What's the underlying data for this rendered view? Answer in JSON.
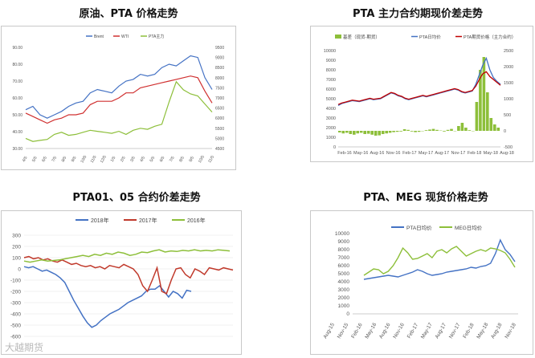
{
  "watermark": "大越期货",
  "chart_data": [
    {
      "type": "line",
      "title": "原油、PTA 价格走势",
      "legend": [
        "Brent",
        "WTI",
        "PTA主力"
      ],
      "colors": [
        "#4472c4",
        "#d03030",
        "#8dbf3a"
      ],
      "x_ticks": [
        "4/5",
        "5/5",
        "6/5",
        "7/5",
        "8/5",
        "9/5",
        "10/5",
        "11/5",
        "12/5",
        "1/5",
        "2/5",
        "3/5",
        "4/5",
        "5/5",
        "6/5",
        "7/5",
        "8/5",
        "9/5",
        "10/5",
        "11/5"
      ],
      "y_left_ticks": [
        "30.00",
        "40.00",
        "50.00",
        "60.00",
        "70.00",
        "80.00",
        "90.00"
      ],
      "y_right_ticks": [
        "4500",
        "5000",
        "5500",
        "6000",
        "6500",
        "7000",
        "7500",
        "8000",
        "8500",
        "9000",
        "9500"
      ],
      "ylim_left": [
        30,
        90
      ],
      "ylim_right": [
        4500,
        9500
      ],
      "series": [
        {
          "name": "Brent",
          "axis": "left",
          "values": [
            53,
            55,
            50,
            48,
            50,
            52,
            55,
            57,
            58,
            63,
            65,
            64,
            63,
            67,
            70,
            71,
            74,
            73,
            74,
            78,
            80,
            79,
            82,
            85,
            84,
            72,
            65
          ]
        },
        {
          "name": "WTI",
          "axis": "left",
          "values": [
            51,
            49,
            47,
            45,
            47,
            48,
            50,
            50,
            51,
            56,
            58,
            58,
            58,
            60,
            63,
            63,
            66,
            67,
            68,
            69,
            70,
            71,
            72,
            73,
            72,
            64,
            57
          ]
        },
        {
          "name": "PTA主力",
          "axis": "right",
          "values": [
            5000,
            4850,
            4900,
            4950,
            5200,
            5300,
            5150,
            5200,
            5300,
            5400,
            5350,
            5300,
            5250,
            5350,
            5200,
            5400,
            5500,
            5450,
            5600,
            5700,
            6800,
            7800,
            7400,
            7200,
            7100,
            6700,
            6300
          ]
        }
      ]
    },
    {
      "type": "line",
      "title": "PTA 主力合约期现价差走势",
      "legend": [
        "基差（现货-期货）",
        "PTA日均价",
        "PTA期货价格（主力合约）"
      ],
      "colors": [
        "#8dbf3a",
        "#4472c4",
        "#c00000"
      ],
      "x_ticks": [
        "Feb-16",
        "May-16",
        "Aug-16",
        "Nov-16",
        "Feb-17",
        "May-17",
        "Aug-17",
        "Nov-17",
        "Feb-18",
        "May-18",
        "Aug-18"
      ],
      "y_left_ticks": [
        "0",
        "1000",
        "2000",
        "3000",
        "4000",
        "5000",
        "6000",
        "7000",
        "8000",
        "9000",
        "10000"
      ],
      "y_right_ticks": [
        "-500",
        "0",
        "500",
        "1000",
        "1500",
        "2000",
        "2500"
      ],
      "ylim_left": [
        0,
        10000
      ],
      "ylim_right": [
        -500,
        2500
      ],
      "series": [
        {
          "name": "基差（现货-期货）",
          "axis": "right",
          "kind": "bar",
          "values": [
            -50,
            -80,
            -60,
            -100,
            -120,
            -80,
            -60,
            -100,
            -90,
            -120,
            -150,
            -140,
            -100,
            -80,
            -60,
            -40,
            -30,
            -20,
            50,
            30,
            -20,
            -40,
            -30,
            -10,
            20,
            40,
            60,
            30,
            10,
            -20,
            30,
            60,
            -10,
            150,
            250,
            100,
            20,
            -10,
            900,
            1900,
            2300,
            1200,
            400,
            200,
            100
          ]
        },
        {
          "name": "PTA日均价",
          "axis": "left",
          "values": [
            4300,
            4500,
            4600,
            4700,
            4800,
            4750,
            4700,
            4800,
            4900,
            5000,
            4900,
            4950,
            5000,
            5200,
            5400,
            5600,
            5500,
            5300,
            5200,
            5000,
            4900,
            5000,
            5100,
            5200,
            5300,
            5200,
            5300,
            5400,
            5500,
            5600,
            5700,
            5800,
            5900,
            6000,
            5900,
            5700,
            5600,
            5700,
            5800,
            6500,
            7500,
            8500,
            9200,
            8000,
            7200,
            6800,
            6500
          ]
        },
        {
          "name": "PTA期货价格（主力合约）",
          "axis": "left",
          "values": [
            4400,
            4550,
            4650,
            4750,
            4850,
            4800,
            4750,
            4850,
            4950,
            5050,
            4950,
            5000,
            5050,
            5250,
            5450,
            5650,
            5550,
            5350,
            5250,
            5050,
            4950,
            5050,
            5150,
            5250,
            5350,
            5250,
            5350,
            5450,
            5550,
            5650,
            5750,
            5850,
            5950,
            6050,
            5950,
            5750,
            5650,
            5750,
            5850,
            6300,
            7000,
            7600,
            7800,
            7300,
            7000,
            6700,
            6400
          ]
        }
      ]
    },
    {
      "type": "line",
      "title": "PTA01、05 合约价差走势",
      "legend": [
        "2018年",
        "2017年",
        "2016年"
      ],
      "colors": [
        "#4472c4",
        "#c0392b",
        "#8dbf3a"
      ],
      "y_ticks": [
        "-600",
        "-500",
        "-400",
        "-300",
        "-200",
        "-100",
        "0",
        "100",
        "200",
        "300"
      ],
      "ylim": [
        -600,
        300
      ],
      "series": [
        {
          "name": "2018年",
          "values": [
            20,
            10,
            20,
            0,
            -20,
            -10,
            -30,
            -50,
            -80,
            -120,
            -200,
            -280,
            -350,
            -420,
            -480,
            -520,
            -500,
            -460,
            -430,
            -400,
            -380,
            -360,
            -330,
            -300,
            -280,
            -260,
            -240,
            -200,
            -180,
            -180,
            -150,
            -200,
            -250,
            -200,
            -220,
            -260,
            -190,
            -200
          ]
        },
        {
          "name": "2017年",
          "values": [
            100,
            110,
            90,
            100,
            80,
            90,
            70,
            60,
            80,
            60,
            40,
            50,
            30,
            20,
            30,
            10,
            20,
            0,
            30,
            20,
            10,
            40,
            20,
            0,
            -50,
            -150,
            -200,
            -100,
            10,
            -200,
            -220,
            -100,
            0,
            10,
            -50,
            -80,
            0,
            -20,
            -50,
            10,
            0,
            -10,
            10,
            0,
            -10
          ]
        },
        {
          "name": "2016年",
          "values": [
            70,
            60,
            70,
            80,
            70,
            75,
            80,
            90,
            100,
            110,
            120,
            110,
            130,
            120,
            140,
            130,
            150,
            140,
            120,
            130,
            150,
            145,
            160,
            170,
            150,
            160,
            155,
            165,
            160,
            170,
            160,
            165,
            160,
            170,
            165,
            160
          ]
        }
      ]
    },
    {
      "type": "line",
      "title": "PTA、MEG 现货价格走势",
      "legend": [
        "PTA日均价",
        "MEG日均价"
      ],
      "colors": [
        "#4472c4",
        "#8dbf3a"
      ],
      "x_ticks": [
        "Aug-15",
        "Nov-15",
        "Feb-16",
        "May-16",
        "Aug-16",
        "Nov-16",
        "Feb-17",
        "May-17",
        "Aug-17",
        "Nov-17",
        "Feb-18",
        "May-18",
        "Aug-18",
        "Nov-18"
      ],
      "y_ticks": [
        "0",
        "1000",
        "2000",
        "3000",
        "4000",
        "5000",
        "6000",
        "7000",
        "8000",
        "9000",
        "10000"
      ],
      "ylim": [
        0,
        10000
      ],
      "series": [
        {
          "name": "PTA日均价",
          "values": [
            4300,
            4400,
            4500,
            4600,
            4700,
            4800,
            4700,
            4600,
            4800,
            5000,
            5200,
            5500,
            5300,
            5000,
            4800,
            4900,
            5000,
            5200,
            5300,
            5400,
            5500,
            5600,
            5800,
            5700,
            5900,
            6000,
            6300,
            7500,
            9200,
            8000,
            7400,
            6500
          ]
        },
        {
          "name": "MEG日均价",
          "values": [
            4800,
            5200,
            5600,
            5500,
            5000,
            5300,
            6000,
            7000,
            8200,
            7600,
            6800,
            6900,
            7200,
            7500,
            7000,
            7800,
            8000,
            7600,
            8100,
            8400,
            7800,
            7200,
            7500,
            7800,
            8000,
            7800,
            8200,
            8100,
            7900,
            7600,
            6800,
            5800
          ]
        }
      ]
    }
  ]
}
